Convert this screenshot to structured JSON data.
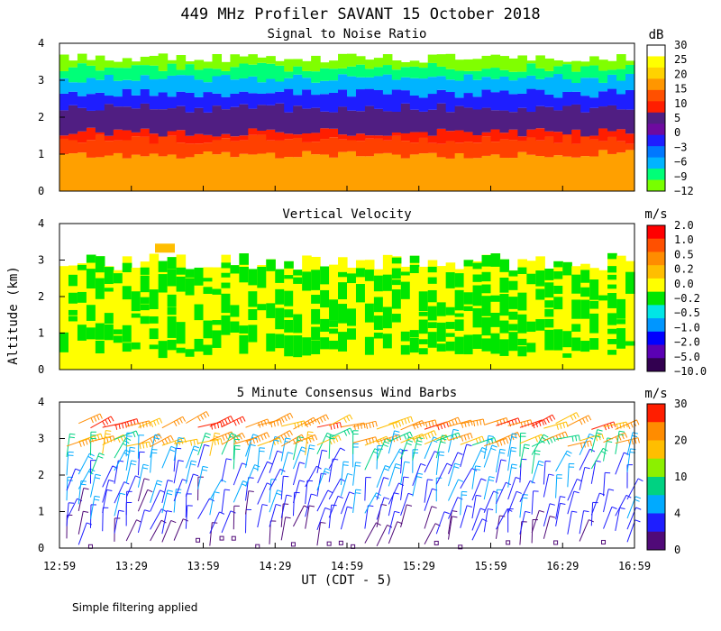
{
  "page_title": "449 MHz Profiler SAVANT 15 October 2018",
  "footer_note": "Simple filtering applied",
  "xlabel": "UT  (CDT - 5)",
  "ylabel": "Altitude (km)",
  "x_ticks": [
    "12:59",
    "13:29",
    "13:59",
    "14:29",
    "14:59",
    "15:29",
    "15:59",
    "16:29",
    "16:59"
  ],
  "y_ticks": [
    "0",
    "1",
    "2",
    "3",
    "4"
  ],
  "chart_data": [
    {
      "type": "heatmap",
      "title": "Signal to Noise Ratio",
      "units": "dB",
      "ylim": [
        0,
        4
      ],
      "xlim": [
        "12:59",
        "16:59"
      ],
      "colorbar_labels": [
        "30",
        "25",
        "20",
        "15",
        "10",
        "5",
        "0",
        "−3",
        "−6",
        "−9",
        "−12"
      ],
      "colorbar_colors": [
        "#ffffff",
        "#ffff00",
        "#ffd200",
        "#ff9600",
        "#ff5000",
        "#ff1e00",
        "#501e82",
        "#6e0aa0",
        "#1e1eff",
        "#0078ff",
        "#00b4ff",
        "#00ff78",
        "#78ff00"
      ],
      "layers": [
        {
          "top_km": 1.0,
          "value_db": 22,
          "color": "#ffa000"
        },
        {
          "top_km": 1.4,
          "value_db": 13,
          "color": "#ff4000"
        },
        {
          "top_km": 1.6,
          "value_db": 10,
          "color": "#ff1e00"
        },
        {
          "top_km": 2.25,
          "value_db": 3,
          "color": "#501e82"
        },
        {
          "top_km": 2.65,
          "value_db": -2,
          "color": "#1e1eff"
        },
        {
          "top_km": 3.05,
          "value_db": -6,
          "color": "#00b4ff"
        },
        {
          "top_km": 3.35,
          "value_db": -9,
          "color": "#00ff78"
        },
        {
          "top_km": 3.6,
          "value_db": -12,
          "color": "#80ff00"
        }
      ]
    },
    {
      "type": "heatmap",
      "title": "Vertical Velocity",
      "units": "m/s",
      "ylim": [
        0,
        4
      ],
      "xlim": [
        "12:59",
        "16:59"
      ],
      "colorbar_labels": [
        "2.0",
        "1.0",
        "0.5",
        "0.2",
        "0.0",
        "−0.2",
        "−0.5",
        "−1.0",
        "−2.0",
        "−5.0",
        "−10.0"
      ],
      "colorbar_colors": [
        "#ff0000",
        "#ff5000",
        "#ff8c00",
        "#ffbe00",
        "#ffff00",
        "#00e600",
        "#00e6e6",
        "#0096ff",
        "#0000ff",
        "#5a00b4",
        "#320050"
      ],
      "regions": [
        {
          "from_km": 0.0,
          "to_km": 3.2,
          "value_ms": 0.0,
          "color": "#ffff00"
        },
        {
          "from_km": 0.4,
          "to_km": 3.1,
          "value_ms": -0.2,
          "color": "#00e600"
        }
      ]
    },
    {
      "type": "scatter",
      "title": "5 Minute Consensus Wind Barbs",
      "units": "m/s",
      "ylim": [
        0,
        4
      ],
      "xlim": [
        "12:59",
        "16:59"
      ],
      "colorbar_labels": [
        "30",
        "20",
        "10",
        "4",
        "0"
      ],
      "colorbar_colors": [
        "#ff1e00",
        "#ff8c00",
        "#ffbe00",
        "#8cf000",
        "#00d282",
        "#00aaff",
        "#1e1eff",
        "#500a78"
      ],
      "speed_bands": [
        {
          "min_ms": 0,
          "max_ms": 4,
          "color": "#500a78"
        },
        {
          "min_ms": 4,
          "max_ms": 7,
          "color": "#1e1eff"
        },
        {
          "min_ms": 7,
          "max_ms": 10,
          "color": "#00aaff"
        },
        {
          "min_ms": 10,
          "max_ms": 15,
          "color": "#00d282"
        },
        {
          "min_ms": 15,
          "max_ms": 20,
          "color": "#ffbe00"
        },
        {
          "min_ms": 20,
          "max_ms": 30,
          "color": "#ff8c00"
        },
        {
          "min_ms": 30,
          "max_ms": 40,
          "color": "#ff1e00"
        }
      ],
      "level_profile_km": [
        0.15,
        0.5,
        0.9,
        1.3,
        1.7,
        2.1,
        2.5,
        2.9,
        3.3
      ],
      "level_speed_ms": [
        3,
        5,
        6,
        6,
        7,
        8,
        12,
        20,
        25
      ]
    }
  ]
}
